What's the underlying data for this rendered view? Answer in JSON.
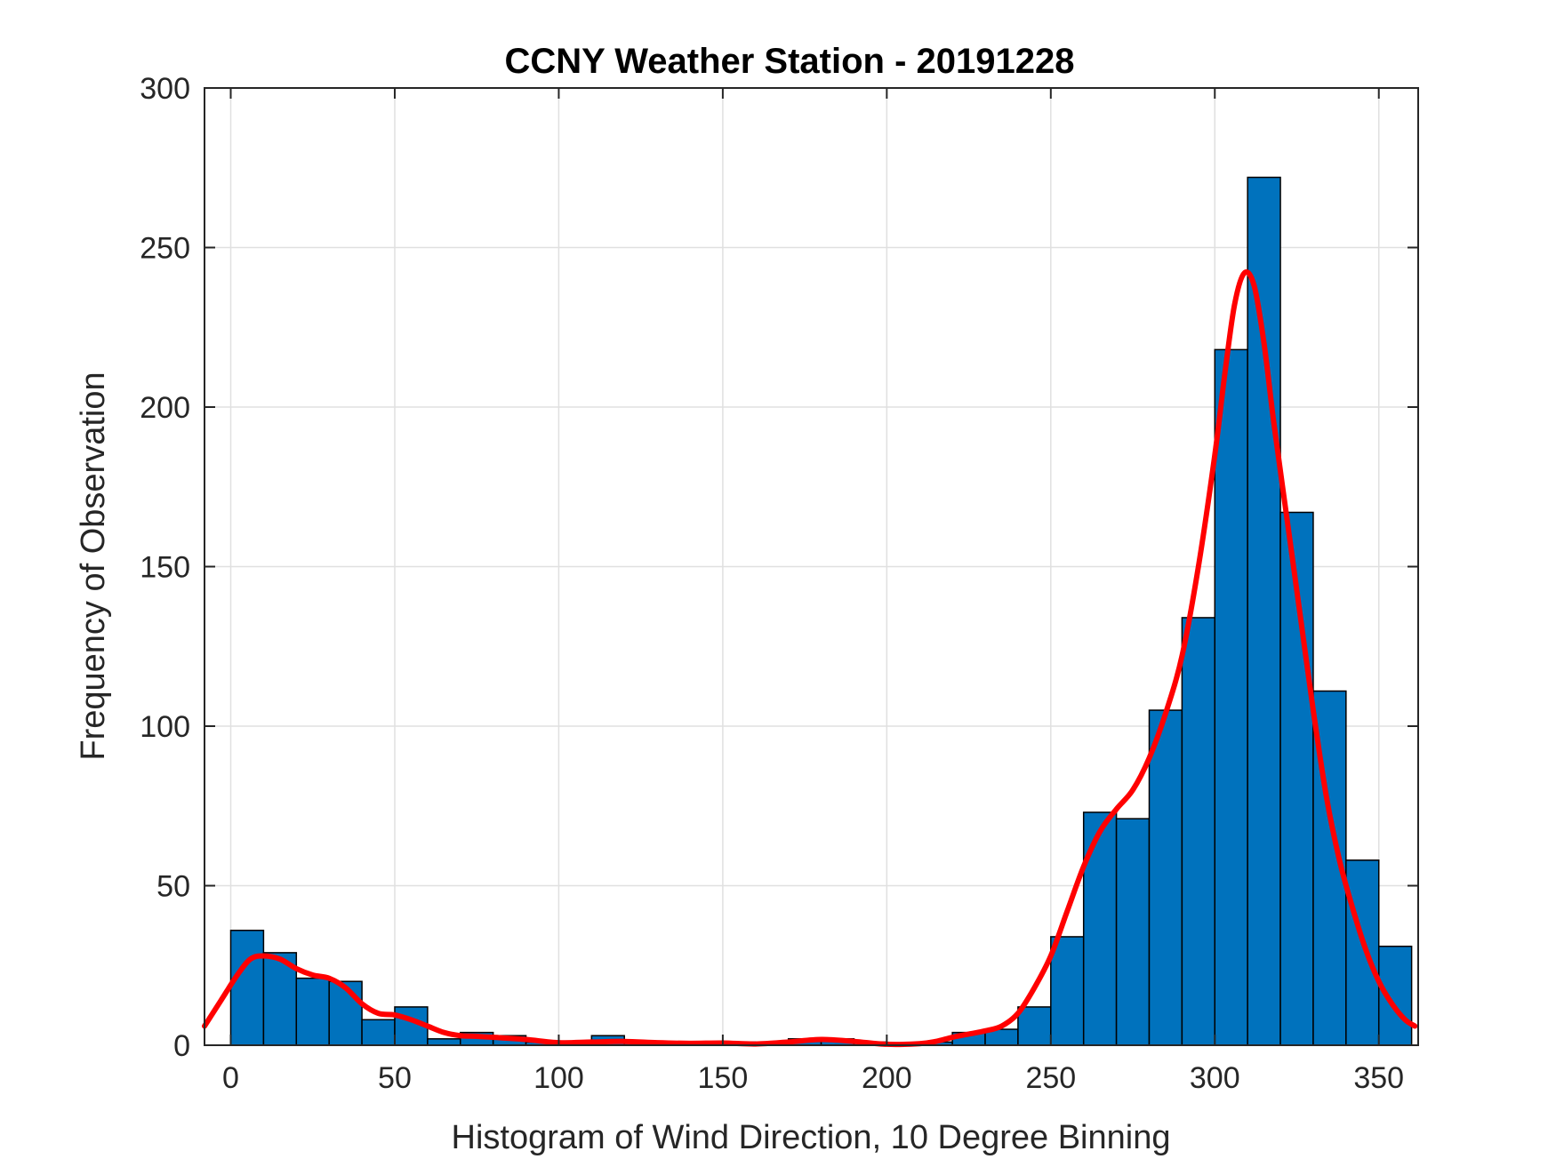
{
  "chart_data": {
    "type": "bar",
    "title": "CCNY Weather Station - 20191228",
    "xlabel": "Histogram of Wind Direction, 10 Degree Binning",
    "ylabel": "Frequency of Observation",
    "xlim": [
      -8,
      362
    ],
    "ylim": [
      0,
      300
    ],
    "xticks": [
      0,
      50,
      100,
      150,
      200,
      250,
      300,
      350
    ],
    "yticks": [
      0,
      50,
      100,
      150,
      200,
      250,
      300
    ],
    "grid": true,
    "bin_width": 10,
    "bins": [
      {
        "x0": 0,
        "x1": 10,
        "value": 36
      },
      {
        "x0": 10,
        "x1": 20,
        "value": 29
      },
      {
        "x0": 20,
        "x1": 30,
        "value": 21
      },
      {
        "x0": 30,
        "x1": 40,
        "value": 20
      },
      {
        "x0": 40,
        "x1": 50,
        "value": 8
      },
      {
        "x0": 50,
        "x1": 60,
        "value": 12
      },
      {
        "x0": 60,
        "x1": 70,
        "value": 2
      },
      {
        "x0": 70,
        "x1": 80,
        "value": 4
      },
      {
        "x0": 80,
        "x1": 90,
        "value": 3
      },
      {
        "x0": 90,
        "x1": 100,
        "value": 1
      },
      {
        "x0": 100,
        "x1": 110,
        "value": 1
      },
      {
        "x0": 110,
        "x1": 120,
        "value": 3
      },
      {
        "x0": 120,
        "x1": 130,
        "value": 1
      },
      {
        "x0": 130,
        "x1": 140,
        "value": 1
      },
      {
        "x0": 140,
        "x1": 150,
        "value": 1
      },
      {
        "x0": 150,
        "x1": 160,
        "value": 1
      },
      {
        "x0": 160,
        "x1": 170,
        "value": 0
      },
      {
        "x0": 170,
        "x1": 180,
        "value": 2
      },
      {
        "x0": 180,
        "x1": 190,
        "value": 2
      },
      {
        "x0": 190,
        "x1": 200,
        "value": 1
      },
      {
        "x0": 200,
        "x1": 210,
        "value": 0
      },
      {
        "x0": 210,
        "x1": 220,
        "value": 1
      },
      {
        "x0": 220,
        "x1": 230,
        "value": 4
      },
      {
        "x0": 230,
        "x1": 240,
        "value": 5
      },
      {
        "x0": 240,
        "x1": 250,
        "value": 12
      },
      {
        "x0": 250,
        "x1": 260,
        "value": 34
      },
      {
        "x0": 260,
        "x1": 270,
        "value": 73
      },
      {
        "x0": 270,
        "x1": 280,
        "value": 71
      },
      {
        "x0": 280,
        "x1": 290,
        "value": 105
      },
      {
        "x0": 290,
        "x1": 300,
        "value": 134
      },
      {
        "x0": 300,
        "x1": 310,
        "value": 218
      },
      {
        "x0": 310,
        "x1": 320,
        "value": 272
      },
      {
        "x0": 320,
        "x1": 330,
        "value": 167
      },
      {
        "x0": 330,
        "x1": 340,
        "value": 111
      },
      {
        "x0": 340,
        "x1": 350,
        "value": 58
      },
      {
        "x0": 350,
        "x1": 360,
        "value": 31
      }
    ],
    "fit_curve": {
      "color": "#ff0000",
      "points": [
        [
          -8,
          6
        ],
        [
          -3,
          14
        ],
        [
          2,
          22
        ],
        [
          6,
          27
        ],
        [
          10,
          28
        ],
        [
          15,
          27
        ],
        [
          20,
          24
        ],
        [
          25,
          22
        ],
        [
          30,
          21
        ],
        [
          35,
          18
        ],
        [
          40,
          13
        ],
        [
          45,
          10
        ],
        [
          50,
          9.5
        ],
        [
          55,
          8
        ],
        [
          60,
          6
        ],
        [
          65,
          4
        ],
        [
          70,
          3
        ],
        [
          75,
          2.8
        ],
        [
          80,
          2.5
        ],
        [
          90,
          1.8
        ],
        [
          100,
          0.8
        ],
        [
          110,
          1
        ],
        [
          120,
          1.2
        ],
        [
          130,
          0.8
        ],
        [
          140,
          0.6
        ],
        [
          150,
          0.7
        ],
        [
          160,
          0.4
        ],
        [
          170,
          1
        ],
        [
          180,
          1.8
        ],
        [
          190,
          1.2
        ],
        [
          200,
          0.3
        ],
        [
          210,
          0.5
        ],
        [
          215,
          1.2
        ],
        [
          220,
          2.5
        ],
        [
          225,
          3.5
        ],
        [
          230,
          4.5
        ],
        [
          235,
          6
        ],
        [
          240,
          10
        ],
        [
          245,
          18
        ],
        [
          250,
          28
        ],
        [
          255,
          42
        ],
        [
          260,
          56
        ],
        [
          265,
          67
        ],
        [
          270,
          74
        ],
        [
          275,
          80
        ],
        [
          280,
          90
        ],
        [
          285,
          104
        ],
        [
          290,
          122
        ],
        [
          295,
          150
        ],
        [
          300,
          185
        ],
        [
          303,
          210
        ],
        [
          306,
          232
        ],
        [
          309,
          242
        ],
        [
          312,
          238
        ],
        [
          315,
          220
        ],
        [
          318,
          195
        ],
        [
          322,
          165
        ],
        [
          326,
          135
        ],
        [
          330,
          105
        ],
        [
          334,
          78
        ],
        [
          338,
          58
        ],
        [
          342,
          43
        ],
        [
          346,
          30
        ],
        [
          350,
          20
        ],
        [
          354,
          13
        ],
        [
          358,
          8
        ],
        [
          361,
          6
        ]
      ]
    },
    "colors": {
      "bar_fill": "#0072BD",
      "bar_edge": "#000000",
      "curve": "#ff0000"
    }
  }
}
